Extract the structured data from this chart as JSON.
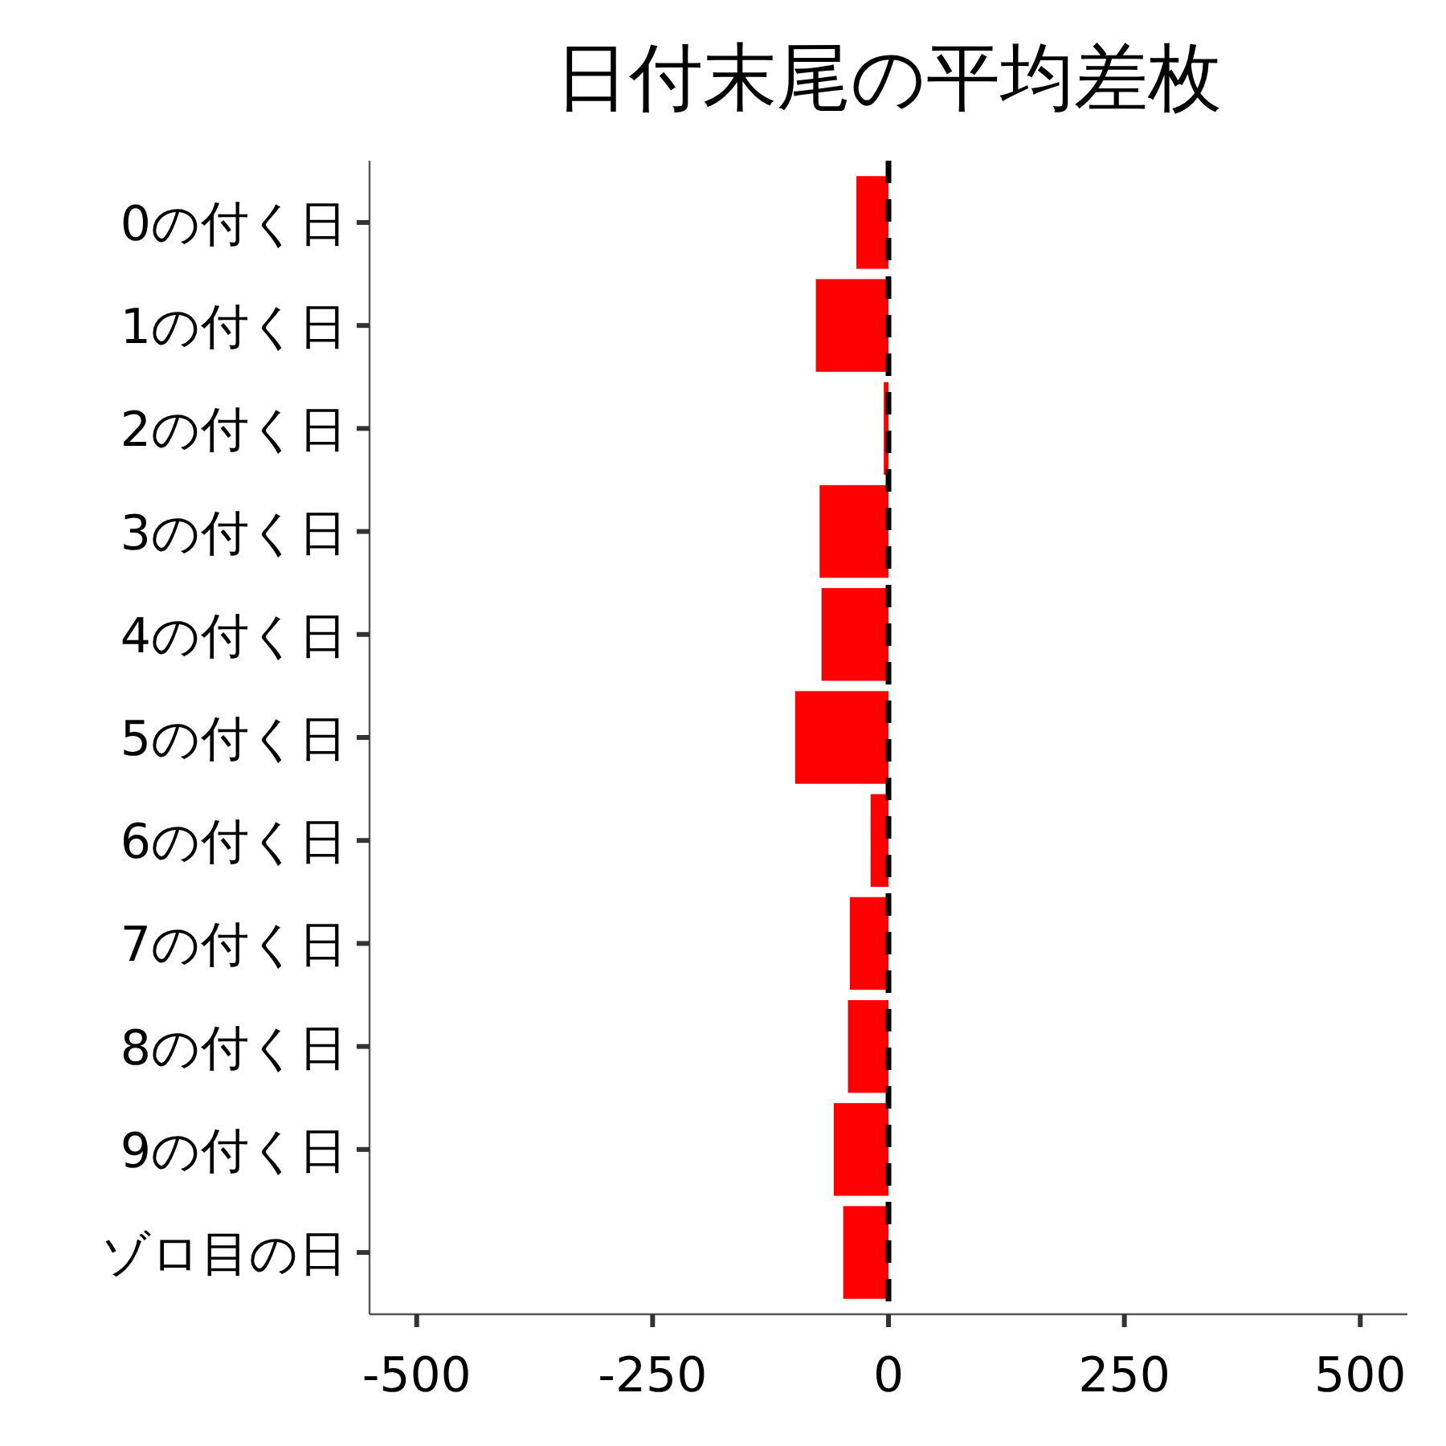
{
  "chart_data": {
    "type": "bar",
    "orientation": "horizontal",
    "title": "日付末尾の平均差枚",
    "categories": [
      "0の付く日",
      "1の付く日",
      "2の付く日",
      "3の付く日",
      "4の付く日",
      "5の付く日",
      "6の付く日",
      "7の付く日",
      "8の付く日",
      "9の付く日",
      "ゾロ目の日"
    ],
    "values": [
      -34,
      -77,
      -5,
      -73,
      -71,
      -99,
      -19,
      -41,
      -43,
      -58,
      -48
    ],
    "color": "#ff0000",
    "xlim": [
      -550,
      550
    ],
    "xticks": [
      {
        "value": -500,
        "label": "-500"
      },
      {
        "value": -250,
        "label": "-250"
      },
      0,
      250,
      500
    ],
    "ref_lines": [
      {
        "axis": "x",
        "value": 0,
        "color": "#000000",
        "line_style": "dashed"
      }
    ],
    "grid": false
  }
}
